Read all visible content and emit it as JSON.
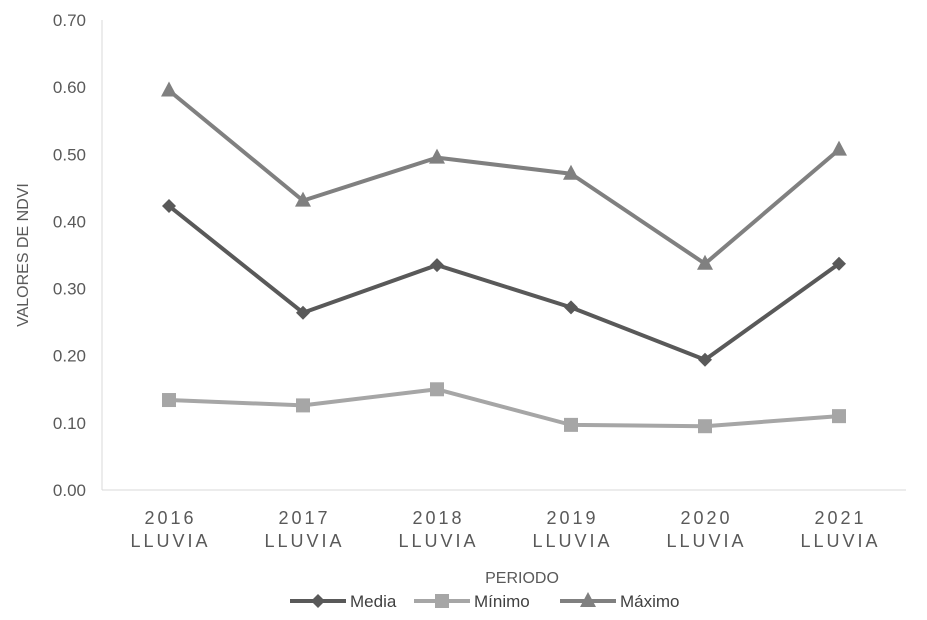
{
  "chart_data": {
    "type": "line",
    "categories": [
      [
        "2016",
        "LLUVIA"
      ],
      [
        "2017",
        "LLUVIA"
      ],
      [
        "2018",
        "LLUVIA"
      ],
      [
        "2019",
        "LLUVIA"
      ],
      [
        "2020",
        "LLUVIA"
      ],
      [
        "2021",
        "LLUVIA"
      ]
    ],
    "series": [
      {
        "name": "Media",
        "values": [
          0.423,
          0.264,
          0.335,
          0.272,
          0.194,
          0.337
        ],
        "color": "#595959",
        "marker": "diamond"
      },
      {
        "name": "Mínimo",
        "values": [
          0.134,
          0.126,
          0.15,
          0.097,
          0.095,
          0.11
        ],
        "color": "#a6a6a6",
        "marker": "square"
      },
      {
        "name": "Máximo",
        "values": [
          0.595,
          0.431,
          0.495,
          0.471,
          0.337,
          0.507
        ],
        "color": "#808080",
        "marker": "triangle"
      }
    ],
    "xlabel": "PERIODO",
    "ylabel": "VALORES DE NDVI",
    "ylim": [
      0,
      0.7
    ],
    "yticks": [
      "0.00",
      "0.10",
      "0.20",
      "0.30",
      "0.40",
      "0.50",
      "0.60",
      "0.70"
    ],
    "grid": false,
    "legend_position": "bottom"
  }
}
